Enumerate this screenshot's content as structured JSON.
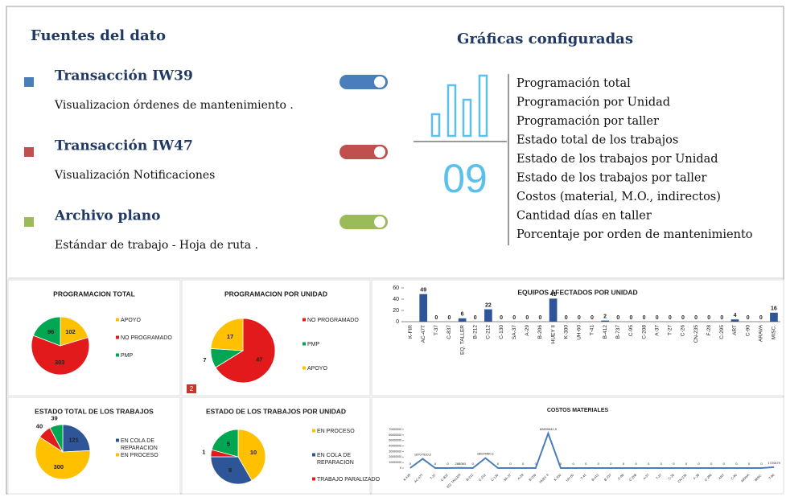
{
  "sources": {
    "title": "Fuentes del dato",
    "items": [
      {
        "name": "Transacción IW39",
        "description": "Visualizacion  órdenes de mantenimiento .",
        "color": "#4a7ebb"
      },
      {
        "name": "Transacción IW47",
        "description": "Visualización Notificaciones",
        "color": "#c0504d"
      },
      {
        "name": "Archivo plano",
        "description": "Estándar de trabajo - Hoja de ruta .",
        "color": "#9bbb59"
      }
    ]
  },
  "configured": {
    "title": "Gráficas configuradas",
    "count": "09",
    "items": [
      "Programación total",
      "Programación por Unidad",
      "Programación por taller",
      "Estado total de los trabajos",
      "Estado de los trabajos por Unidad",
      "Estado de los trabajos por taller",
      "Costos (material, M.O., indirectos)",
      "Cantidad días en taller",
      "Porcentaje por orden de mantenimiento"
    ]
  },
  "chart_data": [
    {
      "type": "pie",
      "title": "PROGRAMACION TOTAL",
      "categories": [
        "APOYO",
        "NO PROGRAMADO",
        "PMP"
      ],
      "values": [
        102,
        303,
        96
      ],
      "colors": [
        "#ffc000",
        "#e31a1c",
        "#00a651"
      ]
    },
    {
      "type": "pie",
      "title": "PROGRAMACION POR UNIDAD",
      "categories": [
        "NO PROGRAMADO",
        "PMP",
        "APOYO"
      ],
      "values": [
        47,
        7,
        17
      ],
      "colors": [
        "#e31a1c",
        "#00a651",
        "#ffc000"
      ],
      "badge": "2"
    },
    {
      "type": "bar",
      "title": "EQUIPOS AFECTADOS POR UNIDAD",
      "color": "#2e5597",
      "categories": [
        "K-FIR",
        "AC-47T",
        "T-37",
        "C-837",
        "EQ. TALLER",
        "B-212",
        "C-212",
        "C-130",
        "SA-37",
        "A-29",
        "B-206",
        "HUEY II",
        "K-300",
        "UH-60",
        "T-41",
        "B-412",
        "B-737",
        "C-95",
        "C-208",
        "A-37",
        "T-27",
        "C-26",
        "CN-235",
        "F-28",
        "C-295",
        "ART",
        "C-90",
        "ARAVA",
        "MISC."
      ],
      "values": [
        null,
        49,
        0,
        0,
        6,
        0,
        22,
        0,
        0,
        0,
        0,
        41,
        0,
        0,
        0,
        2,
        0,
        0,
        0,
        0,
        0,
        0,
        0,
        0,
        0,
        4,
        0,
        0,
        16
      ],
      "ylim": [
        0,
        60
      ],
      "yticks": [
        0,
        20,
        40,
        60
      ]
    },
    {
      "type": "pie",
      "title": "ESTADO TOTAL DE LOS TRABAJOS",
      "categories": [
        "EN COLA DE REPARACION",
        "EN PROCESO",
        null,
        null
      ],
      "values": [
        121,
        300,
        40,
        39
      ],
      "colors": [
        "#2e5597",
        "#ffc000",
        "#e31a1c",
        "#00a651"
      ]
    },
    {
      "type": "pie",
      "title": "ESTADO DE LOS TRABAJOS POR UNIDAD",
      "categories": [
        "EN PROCESO",
        "EN COLA DE REPARACION",
        "TRABAJO PARALIZADO",
        null
      ],
      "values": [
        10,
        8,
        1,
        5
      ],
      "colors": [
        "#ffc000",
        "#2e5597",
        "#e31a1c",
        "#00a651"
      ]
    },
    {
      "type": "line",
      "title": "COSTOS MATERIALES",
      "color": "#4a7ebb",
      "categories": [
        "K-FIR",
        "AC-47T",
        "T-37",
        "C-837",
        "EQ. TALLER",
        "B-212",
        "C-212",
        "C-130",
        "SA-37",
        "A-29",
        "B-206",
        "HUEY II",
        "K-300",
        "UH-60",
        "T-41",
        "B-412",
        "B-737",
        "C-95",
        "C-208",
        "A-37",
        "T-27",
        "C-26",
        "CN-235",
        "F-28",
        "C-295",
        "ART",
        "C-90",
        "ARAVA",
        "MISC.",
        "T-90"
      ],
      "values": [
        0,
        16707910.2,
        0,
        0,
        288080,
        0,
        18024460.1,
        0,
        0,
        0,
        0,
        62859542.9,
        0,
        0,
        0,
        0,
        0,
        0,
        0,
        0,
        0,
        0,
        0,
        0,
        0,
        0,
        0,
        0,
        0,
        1720479
      ],
      "value_labels": [
        "0",
        "16707910,2",
        "0",
        "0",
        "288080",
        "0",
        "18024460,1",
        "0",
        "0",
        "0",
        "0",
        "62859542,9",
        "0",
        "0",
        "0",
        "0",
        "0",
        "0",
        "0",
        "0",
        "0",
        "0",
        "0",
        "0",
        "0",
        "0",
        "0",
        "0",
        "0",
        "1720479"
      ],
      "ylim": [
        0,
        70000000
      ],
      "yticks": [
        0,
        10000000,
        20000000,
        30000000,
        40000000,
        50000000,
        60000000,
        70000000
      ]
    }
  ]
}
